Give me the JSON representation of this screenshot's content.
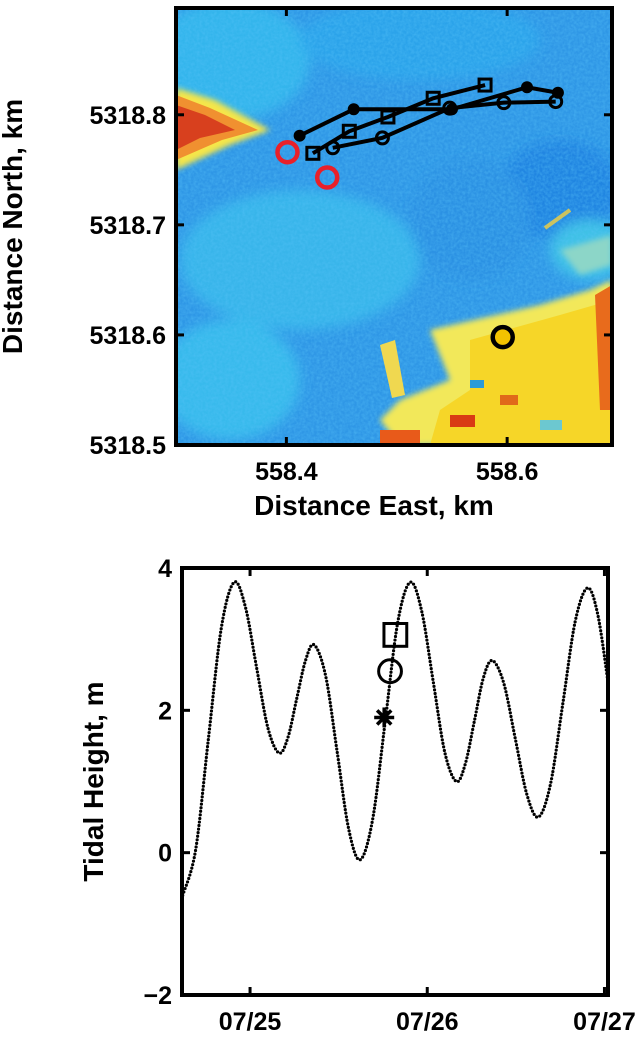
{
  "chart_data": [
    {
      "type": "map",
      "xlabel": "Distance East, km",
      "ylabel": "Distance North, km",
      "xlim": [
        558.3,
        558.695
      ],
      "ylim": [
        5318.5,
        5318.897
      ],
      "xticks": [
        558.4,
        558.6
      ],
      "yticks": [
        5318.5,
        5318.6,
        5318.7,
        5318.8
      ],
      "series": [
        {
          "marker": "filled-circle",
          "line": true,
          "color": "#000000",
          "x": [
            558.412,
            558.461,
            558.55,
            558.618,
            558.646
          ],
          "y": [
            5318.781,
            5318.805,
            5318.805,
            5318.825,
            5318.82
          ]
        },
        {
          "marker": "square",
          "line": true,
          "color": "#000000",
          "x": [
            558.424,
            558.457,
            558.492,
            558.533,
            558.58
          ],
          "y": [
            5318.765,
            5318.785,
            5318.798,
            5318.815,
            5318.827
          ]
        },
        {
          "marker": "open-circle",
          "line": true,
          "color": "#000000",
          "x": [
            558.442,
            558.487,
            558.548,
            558.597,
            558.644
          ],
          "y": [
            5318.77,
            5318.779,
            5318.806,
            5318.811,
            5318.812
          ]
        },
        {
          "marker": "ring",
          "line": false,
          "color": "#e8202a",
          "x": [
            558.401,
            558.437
          ],
          "y": [
            5318.766,
            5318.743
          ]
        },
        {
          "marker": "dot",
          "line": false,
          "color": "#f2c200",
          "x": [
            558.596
          ],
          "y": [
            5318.598
          ]
        }
      ]
    },
    {
      "type": "line",
      "ylabel": "Tidal Height, m",
      "xlim": [
        24.616,
        27.02
      ],
      "ylim": [
        -2,
        4
      ],
      "xticks": [
        {
          "value": 25,
          "label": "07/25"
        },
        {
          "value": 26,
          "label": "07/26"
        },
        {
          "value": 27,
          "label": "07/27"
        }
      ],
      "yticks": [
        {
          "value": -2,
          "label": "−2"
        },
        0,
        2,
        4
      ],
      "series": [
        {
          "color": "#000000",
          "x": [
            24.62,
            24.693,
            24.765,
            24.838,
            24.91,
            24.974,
            25.037,
            25.101,
            25.164,
            25.214,
            25.263,
            25.313,
            25.362,
            25.427,
            25.492,
            25.556,
            25.621,
            25.692,
            25.763,
            25.833,
            25.904,
            25.969,
            26.034,
            26.099,
            26.164,
            26.215,
            26.266,
            26.316,
            26.367,
            26.432,
            26.497,
            26.562,
            26.627,
            26.696,
            26.766,
            26.835,
            26.904,
            26.962,
            27.02
          ],
          "values": [
            -0.6,
            0.04,
            1.6,
            3.16,
            3.8,
            3.45,
            2.6,
            1.75,
            1.4,
            1.62,
            2.16,
            2.7,
            2.92,
            2.48,
            1.41,
            0.34,
            -0.1,
            0.47,
            1.85,
            3.23,
            3.8,
            3.39,
            2.4,
            1.41,
            1.0,
            1.25,
            1.85,
            2.45,
            2.7,
            2.38,
            1.6,
            0.82,
            0.5,
            0.97,
            2.11,
            3.25,
            3.72,
            3.35,
            2.4
          ]
        }
      ],
      "markers": [
        {
          "marker": "asterisk",
          "x": 25.757,
          "y": 1.9
        },
        {
          "marker": "open-circle",
          "x": 25.79,
          "y": 2.55
        },
        {
          "marker": "square",
          "x": 25.82,
          "y": 3.06
        }
      ]
    }
  ]
}
